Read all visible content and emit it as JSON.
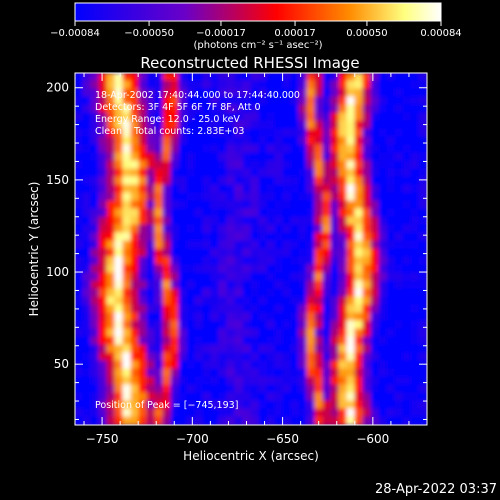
{
  "chart_data": {
    "type": "heatmap",
    "title": "Reconstructed RHESSI Image",
    "xlabel": "Heliocentric X (arcsec)",
    "ylabel": "Heliocentric Y (arcsec)",
    "xlim": [
      -765,
      -570
    ],
    "ylim": [
      17,
      208
    ],
    "x_ticks": [
      -750,
      -700,
      -650,
      -600
    ],
    "x_tick_labels": [
      "−750",
      "−700",
      "−650",
      "−600"
    ],
    "y_ticks": [
      50,
      100,
      150,
      200
    ],
    "y_tick_labels": [
      "50",
      "100",
      "150",
      "200"
    ],
    "colorbar": {
      "range": [
        -0.00084,
        0.00084
      ],
      "ticks": [
        -0.00084,
        -0.0005,
        -0.00017,
        0.00017,
        0.0005,
        0.00084
      ],
      "tick_labels": [
        "−0.00084",
        "−0.00050",
        "−0.00017",
        "0.00017",
        "0.00050",
        "0.00084"
      ],
      "units_label": "(photons cm⁻² s⁻¹ asec⁻²)",
      "colors": [
        "#0000ff",
        "#6a00c8",
        "#ff0000",
        "#ff8c00",
        "#ffff80",
        "#ffffff"
      ]
    },
    "annotations": [
      "18-Apr-2002 17:40:44.000 to 17:44:40.000",
      "Detectors: 3F 4F 5F 6F 7F 8F, Att 0",
      "Energy Range: 12.0 - 25.0 keV",
      "Clean    Total counts: 2.83E+03"
    ],
    "peak_label": "Position of Peak = [−745,193]",
    "peak": [
      -745,
      193
    ],
    "bands": [
      {
        "name": "left_bright",
        "x_center": -738,
        "half_width": 20,
        "level": 0.0008
      },
      {
        "name": "left_red",
        "x_center": -715,
        "half_width": 8,
        "level": 0.0004
      },
      {
        "name": "center_dark",
        "x_center": -675,
        "half_width": 25,
        "level": -0.0006
      },
      {
        "name": "right_red",
        "x_center": -630,
        "half_width": 8,
        "level": 0.0004
      },
      {
        "name": "right_bright",
        "x_center": -610,
        "half_width": 15,
        "level": 0.0008
      }
    ]
  },
  "timestamp": "28-Apr-2022 03:37"
}
